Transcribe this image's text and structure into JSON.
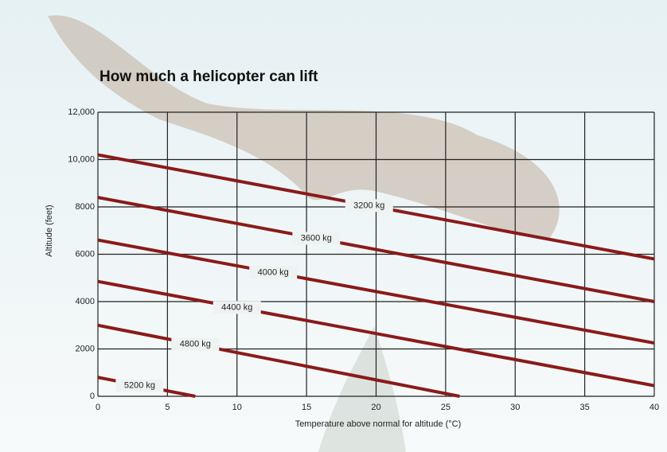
{
  "chart_data": {
    "type": "line",
    "title": "How much a helicopter can lift",
    "x_label": "Temperature above normal for altitude (°C)",
    "y_label": "Altitude (feet)",
    "xlim": [
      0,
      40
    ],
    "xticks": [
      0,
      5,
      10,
      15,
      20,
      25,
      30,
      35,
      40
    ],
    "ylim": [
      0,
      12000
    ],
    "yticks": [
      0,
      2000,
      4000,
      6000,
      8000,
      {
        "value": 10000,
        "label": "10,000"
      },
      {
        "value": 12000,
        "label": "12,000"
      }
    ],
    "grid": true,
    "series": [
      {
        "name": "3200 kg",
        "color": "#8b1a1a",
        "x": [
          0,
          40
        ],
        "values": [
          10200,
          5800
        ]
      },
      {
        "name": "3600 kg",
        "color": "#8b1a1a",
        "x": [
          0,
          40
        ],
        "values": [
          8400,
          4000
        ]
      },
      {
        "name": "4000 kg",
        "color": "#8b1a1a",
        "x": [
          0,
          40
        ],
        "values": [
          6600,
          2250
        ]
      },
      {
        "name": "4400 kg",
        "color": "#8b1a1a",
        "x": [
          0,
          40
        ],
        "values": [
          4850,
          450
        ]
      },
      {
        "name": "4800 kg",
        "color": "#8b1a1a",
        "x": [
          0,
          26
        ],
        "values": [
          3000,
          0
        ]
      },
      {
        "name": "5200 kg",
        "color": "#8b1a1a",
        "x": [
          0,
          7
        ],
        "values": [
          800,
          0
        ]
      }
    ]
  }
}
